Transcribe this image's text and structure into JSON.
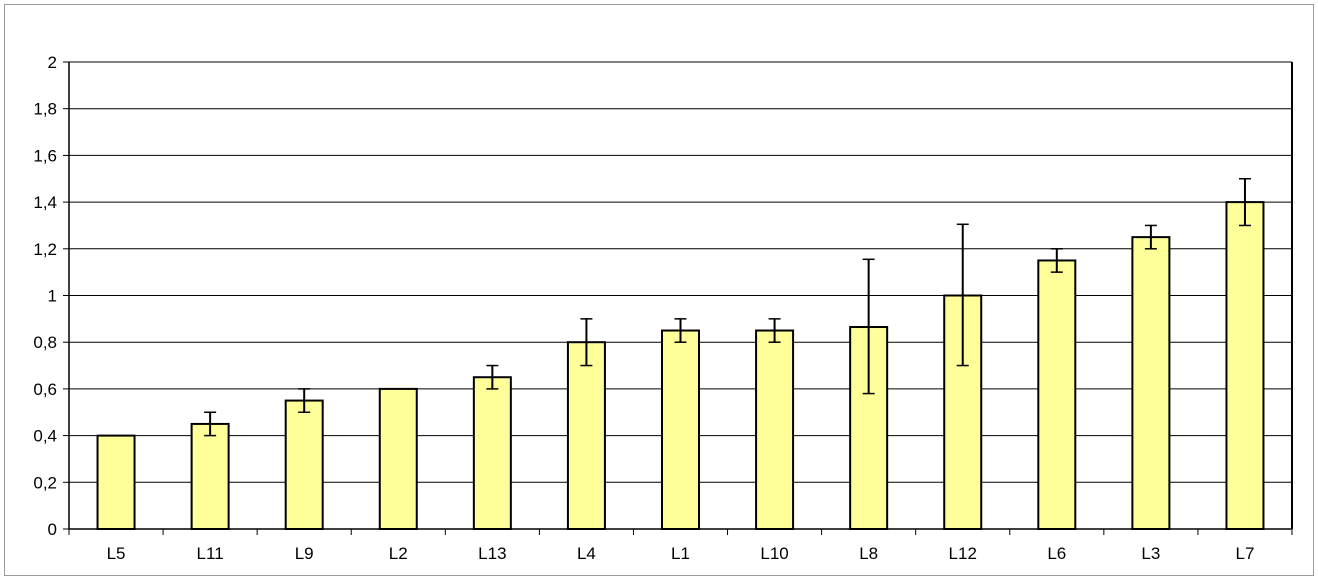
{
  "chart_data": {
    "type": "bar",
    "title": "",
    "xlabel": "",
    "ylabel": "",
    "categories": [
      "L5",
      "L11",
      "L9",
      "L2",
      "L13",
      "L4",
      "L1",
      "L10",
      "L8",
      "L12",
      "L6",
      "L3",
      "L7"
    ],
    "values": [
      0.4,
      0.45,
      0.55,
      0.6,
      0.65,
      0.8,
      0.85,
      0.85,
      0.865,
      1.0,
      1.15,
      1.25,
      1.4
    ],
    "error_low": [
      0.4,
      0.4,
      0.5,
      0.6,
      0.6,
      0.7,
      0.8,
      0.8,
      0.58,
      0.7,
      1.1,
      1.2,
      1.3
    ],
    "error_high": [
      0.4,
      0.5,
      0.6,
      0.6,
      0.7,
      0.9,
      0.9,
      0.9,
      1.155,
      1.305,
      1.2,
      1.3,
      1.5
    ],
    "ylim": [
      0,
      2
    ],
    "yticks": [
      0,
      0.2,
      0.4,
      0.6,
      0.8,
      1,
      1.2,
      1.4,
      1.6,
      1.8,
      2
    ],
    "ytick_labels": [
      "0",
      "0,2",
      "0,4",
      "0,6",
      "0,8",
      "1",
      "1,2",
      "1,4",
      "1,6",
      "1,8",
      "2"
    ],
    "grid": true,
    "legend": "none",
    "colors": {
      "bar_fill": "#ffff99",
      "bar_stroke": "#000000",
      "grid": "#000000"
    }
  }
}
